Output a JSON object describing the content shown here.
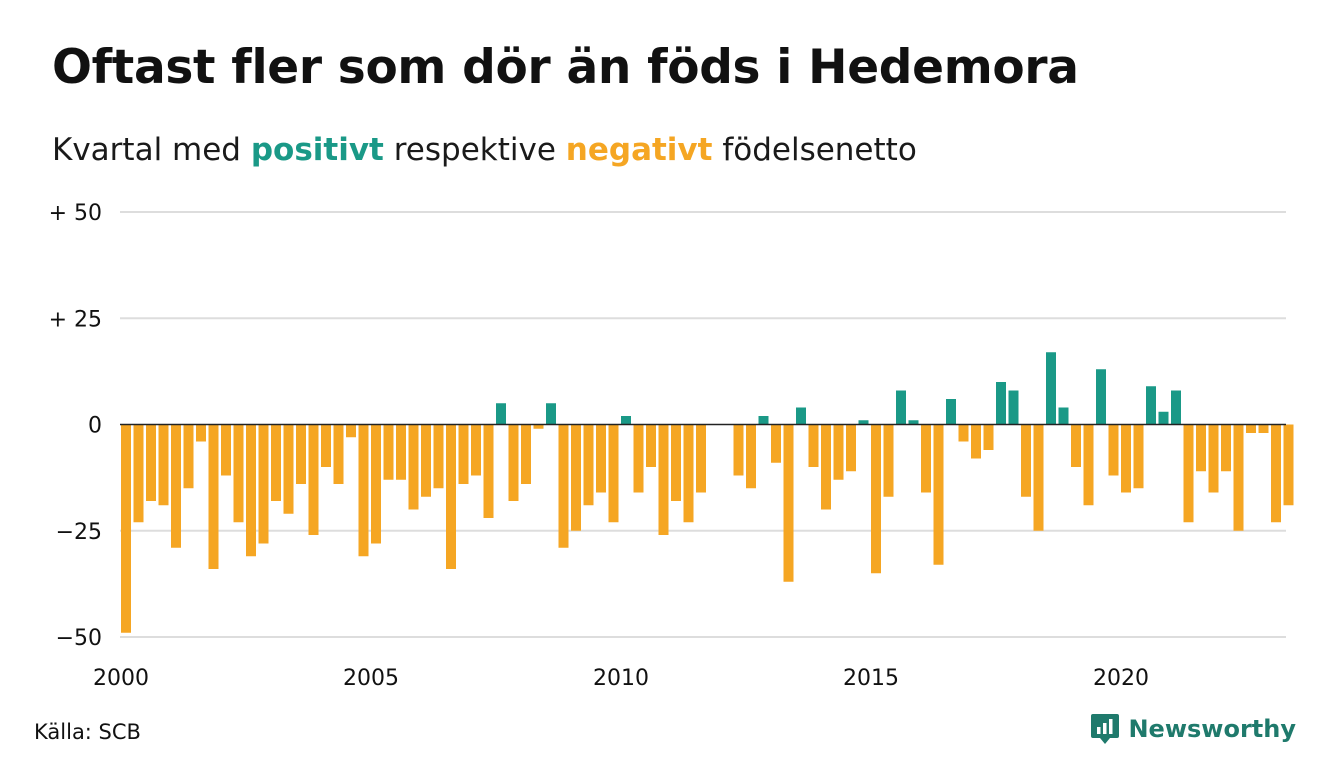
{
  "header": {
    "title": "Oftast fler som dör än föds i Hedemora",
    "subtitle_pre": "Kvartal med ",
    "subtitle_pos": "positivt",
    "subtitle_mid": " respektive ",
    "subtitle_neg": "negativt",
    "subtitle_post": " födelsenetto"
  },
  "footer": {
    "source": "Källa: SCB",
    "brand": "Newsworthy"
  },
  "colors": {
    "positive": "#1a9987",
    "negative": "#f5a623",
    "grid": "#dddddd",
    "zero_line": "#222222",
    "brand": "#1f7a6c"
  },
  "chart_data": {
    "type": "bar",
    "title": "Oftast fler som dör än föds i Hedemora",
    "subtitle": "Kvartal med positivt respektive negativt födelsenetto",
    "ylim": [
      -50,
      50
    ],
    "yticks": [
      50,
      25,
      0,
      -25,
      -50
    ],
    "ytick_labels": [
      "+ 50",
      "+ 25",
      "0",
      "−25",
      "−50"
    ],
    "xticks": [
      2000,
      2005,
      2010,
      2015,
      2020
    ],
    "xtick_labels": [
      "2000",
      "2005",
      "2010",
      "2015",
      "2020"
    ],
    "grid": true,
    "start_year": 2000,
    "periods_per_year": 4,
    "values": [
      -49,
      -23,
      -18,
      -19,
      -29,
      -15,
      -4,
      -34,
      -12,
      -23,
      -31,
      -28,
      -18,
      -21,
      -14,
      -26,
      -10,
      -14,
      -3,
      -31,
      -28,
      -13,
      -13,
      -20,
      -17,
      -15,
      -34,
      -14,
      -12,
      -22,
      5,
      -18,
      -14,
      -1,
      5,
      -29,
      -25,
      -19,
      -16,
      -23,
      2,
      -16,
      -10,
      -26,
      -18,
      -23,
      -16,
      0,
      0,
      -12,
      -15,
      2,
      -9,
      -37,
      4,
      -10,
      -20,
      -13,
      -11,
      1,
      -35,
      -17,
      8,
      1,
      -16,
      -33,
      6,
      -4,
      -8,
      -6,
      10,
      8,
      -17,
      -25,
      17,
      4,
      -10,
      -19,
      13,
      -12,
      -16,
      -15,
      9,
      3,
      8,
      -23,
      -11,
      -16,
      -11,
      -25,
      -2,
      -2,
      -23,
      -19
    ]
  }
}
